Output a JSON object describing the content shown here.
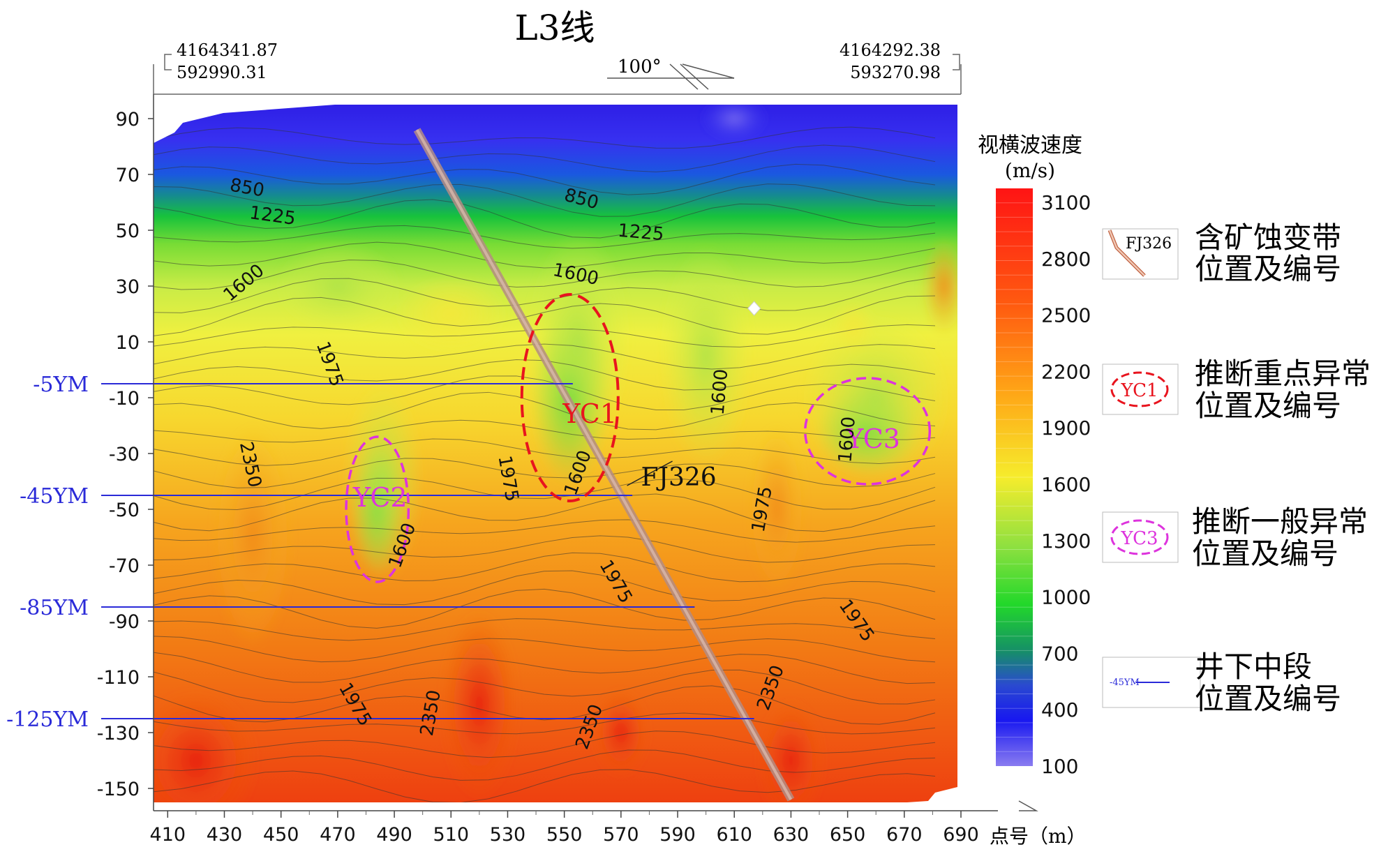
{
  "title": "L3线",
  "coords": {
    "left_top": "4164341.87",
    "left_bottom": "592990.31",
    "right_top": "4164292.38",
    "right_bottom": "593270.98",
    "bearing": "100°"
  },
  "colorbar": {
    "title_line1": "视横波速度",
    "title_line2": "(m/s)",
    "ticks": [
      "3100",
      "2800",
      "2500",
      "2200",
      "1900",
      "1600",
      "1300",
      "1000",
      "700",
      "400",
      "100"
    ]
  },
  "legend": {
    "fault": {
      "sample": "FJ326",
      "line1": "含矿蚀变带",
      "line2": "位置及编号"
    },
    "key_anomaly": {
      "sample": "YC1",
      "line1": "推断重点异常",
      "line2": "位置及编号"
    },
    "general_anomaly": {
      "sample": "YC3",
      "line1": "推断一般异常",
      "line2": "位置及编号"
    },
    "level": {
      "sample": "-45YM",
      "line1": "井下中段",
      "line2": "位置及编号"
    }
  },
  "colors": {
    "accent_key_anomaly": "#e8141e",
    "accent_general_anomaly": "#dd33dd",
    "level_line": "#2a2ad8",
    "fault_band": "#b48c82"
  },
  "chart_data": {
    "type": "heatmap",
    "title": "L3线",
    "xlabel": "点号（m）",
    "xlim": [
      405,
      690
    ],
    "ylim": [
      -155,
      95
    ],
    "x_ticks": [
      "410",
      "430",
      "450",
      "470",
      "490",
      "510",
      "530",
      "550",
      "570",
      "590",
      "610",
      "630",
      "650",
      "670",
      "690"
    ],
    "y_ticks": [
      "90",
      "70",
      "50",
      "30",
      "10",
      "-10",
      "-30",
      "-50",
      "-70",
      "-90",
      "-110",
      "-130",
      "-150"
    ],
    "colorbar_range": [
      100,
      3100
    ],
    "grid": false,
    "legend_position": "right",
    "contour_labels": [
      {
        "text": "850",
        "x": 438,
        "y": 65,
        "angle": 10
      },
      {
        "text": "1225",
        "x": 447,
        "y": 55,
        "angle": 8
      },
      {
        "text": "1600",
        "x": 437,
        "y": 31,
        "angle": -40
      },
      {
        "text": "850",
        "x": 556,
        "y": 61,
        "angle": 15
      },
      {
        "text": "1225",
        "x": 577,
        "y": 49,
        "angle": 5
      },
      {
        "text": "1600",
        "x": 554,
        "y": 34,
        "angle": 12
      },
      {
        "text": "1975",
        "x": 467,
        "y": 2,
        "angle": 70
      },
      {
        "text": "2350",
        "x": 439,
        "y": -34,
        "angle": 78
      },
      {
        "text": "1975",
        "x": 530,
        "y": -39,
        "angle": 80
      },
      {
        "text": "1600",
        "x": 555,
        "y": -37,
        "angle": -70
      },
      {
        "text": "1600",
        "x": 493,
        "y": -63,
        "angle": -70
      },
      {
        "text": "1600",
        "x": 605,
        "y": -8,
        "angle": -85
      },
      {
        "text": "1975",
        "x": 620,
        "y": -50,
        "angle": -80
      },
      {
        "text": "1600",
        "x": 650,
        "y": -25,
        "angle": -85
      },
      {
        "text": "1975",
        "x": 568,
        "y": -76,
        "angle": 60
      },
      {
        "text": "1975",
        "x": 653,
        "y": -90,
        "angle": 55
      },
      {
        "text": "1975",
        "x": 476,
        "y": -120,
        "angle": 60
      },
      {
        "text": "2350",
        "x": 503,
        "y": -123,
        "angle": -80
      },
      {
        "text": "2350",
        "x": 559,
        "y": -128,
        "angle": -70
      },
      {
        "text": "2350",
        "x": 623,
        "y": -114,
        "angle": -70
      }
    ],
    "levels": [
      {
        "name": "-5YM",
        "y": -5,
        "x_end": 553
      },
      {
        "name": "-45YM",
        "y": -45,
        "x_end": 574
      },
      {
        "name": "-85YM",
        "y": -85,
        "x_end": 596
      },
      {
        "name": "-125YM",
        "y": -125,
        "x_end": 617
      }
    ],
    "fault": {
      "name": "FJ326",
      "from": [
        498,
        86
      ],
      "to": [
        630,
        -154
      ],
      "label_at": [
        582,
        -39
      ]
    },
    "anomalies": [
      {
        "name": "YC1",
        "kind": "key",
        "cx": 552,
        "cy": -10,
        "rx": 17,
        "ry": 37,
        "label_at": [
          559,
          -16
        ]
      },
      {
        "name": "YC2",
        "kind": "general",
        "cx": 484,
        "cy": -50,
        "rx": 11,
        "ry": 26,
        "label_at": [
          485,
          -46
        ]
      },
      {
        "name": "YC3",
        "kind": "general",
        "cx": 657,
        "cy": -22,
        "rx": 22,
        "ry": 19,
        "label_at": [
          659,
          -25
        ]
      }
    ]
  }
}
